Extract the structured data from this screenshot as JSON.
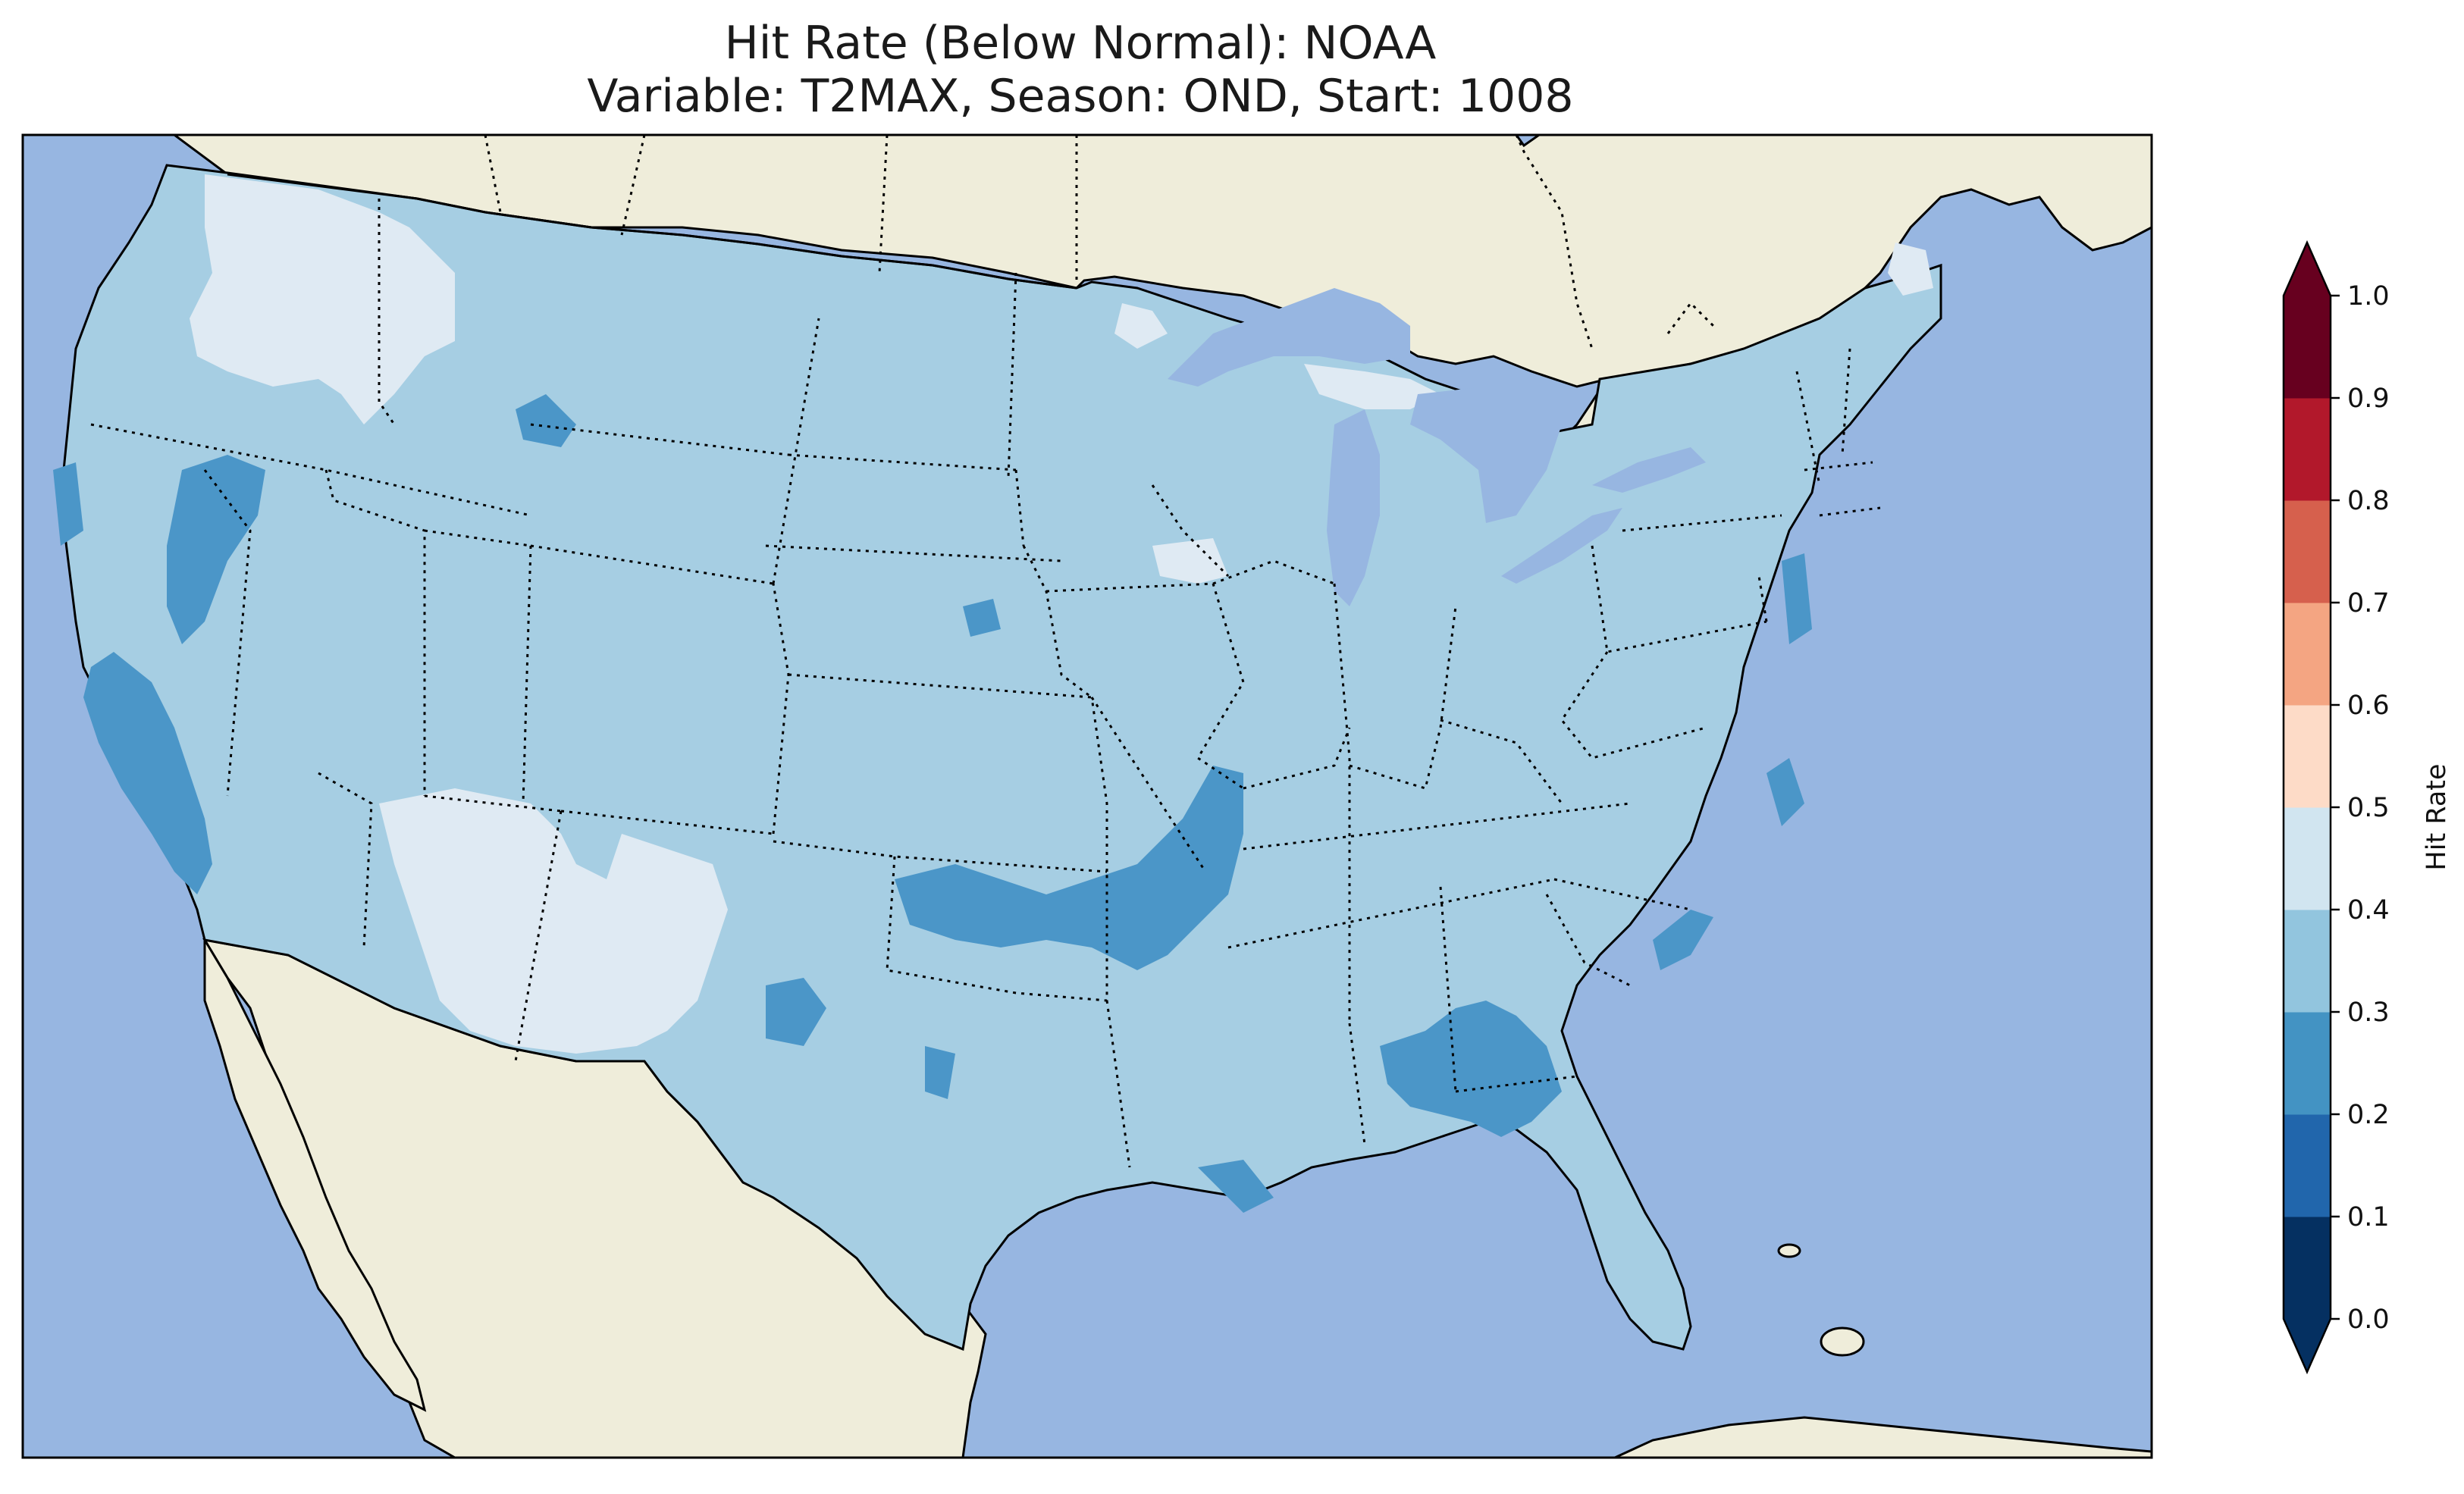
{
  "title": {
    "line1": "Hit Rate (Below Normal): NOAA",
    "line2": "Variable: T2MAX, Season: OND, Start: 1008"
  },
  "colors": {
    "ocean": "#97b6e1",
    "land": "#efedda",
    "coast": "#000000"
  },
  "colorbar": {
    "label": "Hit Rate",
    "levels": [
      0.0,
      0.1,
      0.2,
      0.3,
      0.4,
      0.5,
      0.6,
      0.7,
      0.8,
      0.9,
      1.0
    ],
    "tick_labels": [
      "0.0",
      "0.1",
      "0.2",
      "0.3",
      "0.4",
      "0.5",
      "0.6",
      "0.7",
      "0.8",
      "0.9",
      "1.0"
    ],
    "colors": [
      "#053061",
      "#2166ac",
      "#4393c3",
      "#92c5de",
      "#d1e5f0",
      "#fddbc7",
      "#f4a582",
      "#d6604d",
      "#b2182b",
      "#67001f"
    ],
    "extend": "both"
  },
  "chart_data": {
    "type": "heatmap",
    "title": "Hit Rate (Below Normal): NOAA\nVariable: T2MAX, Season: OND, Start: 1008",
    "variable": "T2MAX",
    "season": "OND",
    "start": "1008",
    "region": "Contiguous United States",
    "dominant_band": [
      0.3,
      0.4
    ],
    "regions": [
      {
        "name": "Most of CONUS",
        "band": [
          0.3,
          0.4
        ]
      },
      {
        "name": "Washington / northern Idaho",
        "band": [
          0.4,
          0.5
        ]
      },
      {
        "name": "Utah-Arizona-New Mexico (Four Corners)",
        "band": [
          0.4,
          0.5
        ]
      },
      {
        "name": "Northern Michigan / Minnesota border",
        "band": [
          0.4,
          0.5
        ]
      },
      {
        "name": "Northern Maine",
        "band": [
          0.4,
          0.5
        ]
      },
      {
        "name": "Coastal California",
        "band": [
          0.2,
          0.3
        ]
      },
      {
        "name": "Western Nevada",
        "band": [
          0.2,
          0.3
        ]
      },
      {
        "name": "Oklahoma / Arkansas / Missouri",
        "band": [
          0.2,
          0.3
        ]
      },
      {
        "name": "Alabama / Georgia",
        "band": [
          0.2,
          0.3
        ]
      },
      {
        "name": "Eastern North Carolina / Delmarva",
        "band": [
          0.2,
          0.3
        ]
      }
    ]
  }
}
